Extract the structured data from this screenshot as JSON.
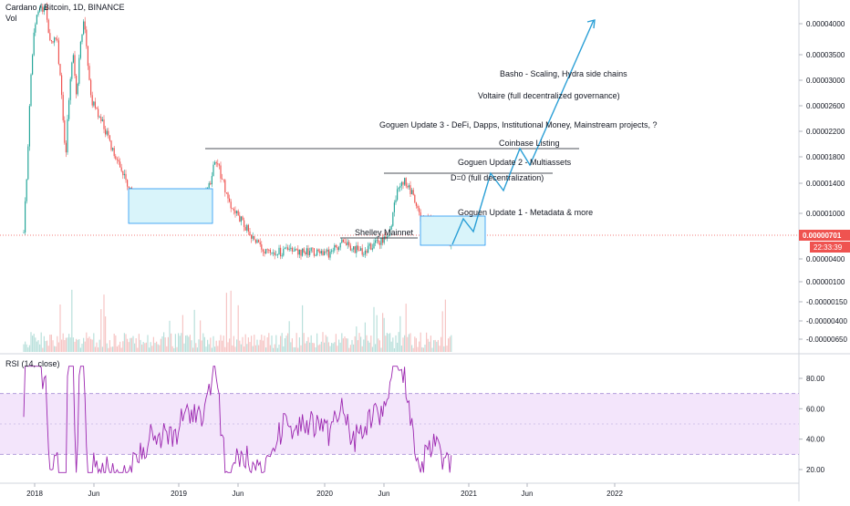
{
  "header": {
    "symbol_title": "Cardano / Bitcoin, 1D, BINANCE",
    "volume_label": "Vol",
    "rsi_label": "RSI (14, close)"
  },
  "colors": {
    "up": "#26a69a",
    "down": "#ef5350",
    "rsi_line": "#9c27b0",
    "rsi_band": "#f3e5fb",
    "box_fill": "#d9f4fa",
    "box_stroke": "#2196f3",
    "forecast": "#2a9fd6",
    "price_tag": "#ef5350"
  },
  "chart_data": [
    {
      "type": "candlestick",
      "price_axis_ticks": [
        "0.00004000",
        "0.00003500",
        "0.00003000",
        "0.00002600",
        "0.00002200",
        "0.00001800",
        "0.00001400",
        "0.00001000",
        "0.00000400",
        "0.00000100",
        "-0.00000150",
        "-0.00000400",
        "-0.00000650"
      ],
      "current_price": "0.00000701",
      "countdown": "22:33:39",
      "time_axis_ticks": [
        "2018",
        "Jun",
        "2019",
        "Jun",
        "2020",
        "Jun",
        "2021",
        "Jun",
        "2022"
      ],
      "annotations": [
        "Basho - Scaling, Hydra side chains",
        "Voltaire (full decentralized governance)",
        "Goguen Update 3 - DeFi, Dapps, Institutional Money, Mainstream projects, ?",
        "Coinbase Listing",
        "Goguen Update 2 - Multiassets",
        "D=0 (full decentralization)",
        "Goguen Update 1 - Metadata & more",
        "Shelley Mainnet"
      ]
    },
    {
      "type": "line",
      "name": "RSI (14, close)",
      "y_axis_ticks": [
        "80.00",
        "60.00",
        "40.00",
        "20.00"
      ],
      "band": [
        30,
        70
      ]
    }
  ]
}
